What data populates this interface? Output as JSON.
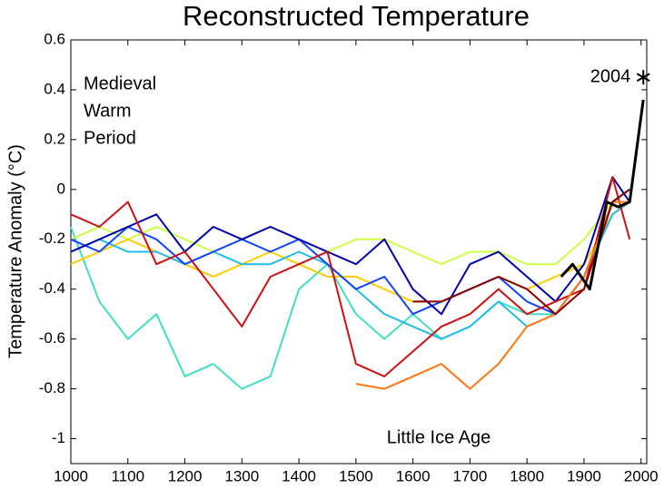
{
  "chart_data": {
    "type": "line",
    "title": "Reconstructed Temperature",
    "ylabel": "Temperature Anomaly (°C)",
    "xlim": [
      1000,
      2010
    ],
    "ylim": [
      -1.1,
      0.6
    ],
    "xticks": [
      1000,
      1100,
      1200,
      1300,
      1400,
      1500,
      1600,
      1700,
      1800,
      1900,
      2000
    ],
    "yticks": [
      0.6,
      0.4,
      0.2,
      0,
      -0.2,
      -0.4,
      -0.6,
      -0.8,
      -1
    ],
    "annotations": [
      {
        "text": [
          "Medieval",
          "Warm",
          "Period"
        ]
      },
      {
        "text": "2004",
        "x": 2004,
        "y": 0.45
      },
      {
        "text": "Little Ice Age"
      }
    ],
    "series": [
      {
        "color": "#40e0c0",
        "x": [
          1000,
          1050,
          1100,
          1150,
          1200,
          1250,
          1300,
          1350,
          1400,
          1450,
          1500,
          1550,
          1600,
          1650,
          1700,
          1750,
          1800,
          1850,
          1900,
          1950,
          1980
        ],
        "values": [
          -0.15,
          -0.45,
          -0.6,
          -0.5,
          -0.75,
          -0.7,
          -0.8,
          -0.75,
          -0.4,
          -0.3,
          -0.5,
          -0.6,
          -0.5,
          -0.6,
          -0.55,
          -0.45,
          -0.5,
          -0.5,
          -0.35,
          -0.05,
          0
        ]
      },
      {
        "color": "#ccff44",
        "x": [
          1000,
          1050,
          1100,
          1150,
          1200,
          1250,
          1300,
          1350,
          1400,
          1450,
          1500,
          1550,
          1600,
          1650,
          1700,
          1750,
          1800,
          1850,
          1900,
          1950,
          1980
        ],
        "values": [
          -0.2,
          -0.15,
          -0.2,
          -0.15,
          -0.2,
          -0.25,
          -0.2,
          -0.15,
          -0.2,
          -0.25,
          -0.2,
          -0.2,
          -0.25,
          -0.3,
          -0.25,
          -0.25,
          -0.3,
          -0.3,
          -0.2,
          -0.05,
          0
        ]
      },
      {
        "color": "#ffcc00",
        "x": [
          1000,
          1050,
          1100,
          1150,
          1200,
          1250,
          1300,
          1350,
          1400,
          1450,
          1500,
          1550,
          1600,
          1650,
          1700,
          1750,
          1800,
          1850,
          1900,
          1950,
          1980
        ],
        "values": [
          -0.3,
          -0.25,
          -0.2,
          -0.25,
          -0.3,
          -0.35,
          -0.3,
          -0.25,
          -0.3,
          -0.35,
          -0.35,
          -0.4,
          -0.45,
          -0.45,
          -0.4,
          -0.35,
          -0.4,
          -0.35,
          -0.3,
          -0.1,
          -0.05
        ]
      },
      {
        "color": "#22bbee",
        "x": [
          1000,
          1050,
          1100,
          1150,
          1200,
          1250,
          1300,
          1350,
          1400,
          1450,
          1500,
          1550,
          1600,
          1650,
          1700,
          1750,
          1800,
          1850,
          1900,
          1950,
          1980
        ],
        "values": [
          -0.25,
          -0.2,
          -0.25,
          -0.25,
          -0.3,
          -0.25,
          -0.3,
          -0.3,
          -0.25,
          -0.3,
          -0.4,
          -0.5,
          -0.55,
          -0.6,
          -0.55,
          -0.45,
          -0.55,
          -0.5,
          -0.35,
          -0.1,
          -0.05
        ]
      },
      {
        "color": "#1144ff",
        "x": [
          1000,
          1050,
          1100,
          1150,
          1200,
          1250,
          1300,
          1350,
          1400,
          1450,
          1500,
          1550,
          1600,
          1650,
          1700,
          1750,
          1800,
          1850,
          1900,
          1950,
          1980
        ],
        "values": [
          -0.2,
          -0.25,
          -0.15,
          -0.2,
          -0.3,
          -0.25,
          -0.2,
          -0.25,
          -0.2,
          -0.3,
          -0.4,
          -0.35,
          -0.5,
          -0.45,
          -0.4,
          -0.35,
          -0.45,
          -0.5,
          -0.35,
          -0.05,
          0
        ]
      },
      {
        "color": "#0000aa",
        "x": [
          1000,
          1050,
          1100,
          1150,
          1200,
          1250,
          1300,
          1350,
          1400,
          1450,
          1500,
          1550,
          1600,
          1650,
          1700,
          1750,
          1800,
          1850,
          1900,
          1950,
          1980
        ],
        "values": [
          -0.25,
          -0.2,
          -0.15,
          -0.1,
          -0.25,
          -0.15,
          -0.2,
          -0.15,
          -0.2,
          -0.25,
          -0.3,
          -0.2,
          -0.4,
          -0.5,
          -0.3,
          -0.25,
          -0.35,
          -0.45,
          -0.3,
          0.05,
          -0.05
        ]
      },
      {
        "color": "#cc1111",
        "x": [
          1000,
          1050,
          1100,
          1150,
          1200,
          1250,
          1300,
          1350,
          1400,
          1450,
          1500,
          1550,
          1600,
          1650,
          1700,
          1750,
          1800,
          1850,
          1900,
          1950,
          1980
        ],
        "values": [
          -0.1,
          -0.15,
          -0.05,
          -0.3,
          -0.25,
          -0.4,
          -0.55,
          -0.35,
          -0.3,
          -0.25,
          -0.7,
          -0.75,
          -0.65,
          -0.55,
          -0.5,
          -0.4,
          -0.5,
          -0.45,
          -0.4,
          0.05,
          -0.2
        ]
      },
      {
        "color": "#ff7711",
        "x": [
          1500,
          1550,
          1600,
          1650,
          1700,
          1750,
          1800,
          1850,
          1900,
          1950,
          1980
        ],
        "values": [
          -0.78,
          -0.8,
          -0.75,
          -0.7,
          -0.8,
          -0.7,
          -0.55,
          -0.5,
          -0.35,
          -0.05,
          -0.05
        ]
      },
      {
        "color": "#880000",
        "x": [
          1600,
          1650,
          1700,
          1750,
          1800,
          1850,
          1900,
          1950,
          1980
        ],
        "values": [
          -0.45,
          -0.45,
          -0.4,
          -0.35,
          -0.4,
          -0.5,
          -0.4,
          -0.05,
          0
        ]
      },
      {
        "color": "#000000",
        "x": [
          1860,
          1880,
          1910,
          1940,
          1960,
          1980,
          2004
        ],
        "values": [
          -0.35,
          -0.3,
          -0.4,
          -0.05,
          -0.07,
          -0.05,
          0.36
        ]
      }
    ]
  }
}
